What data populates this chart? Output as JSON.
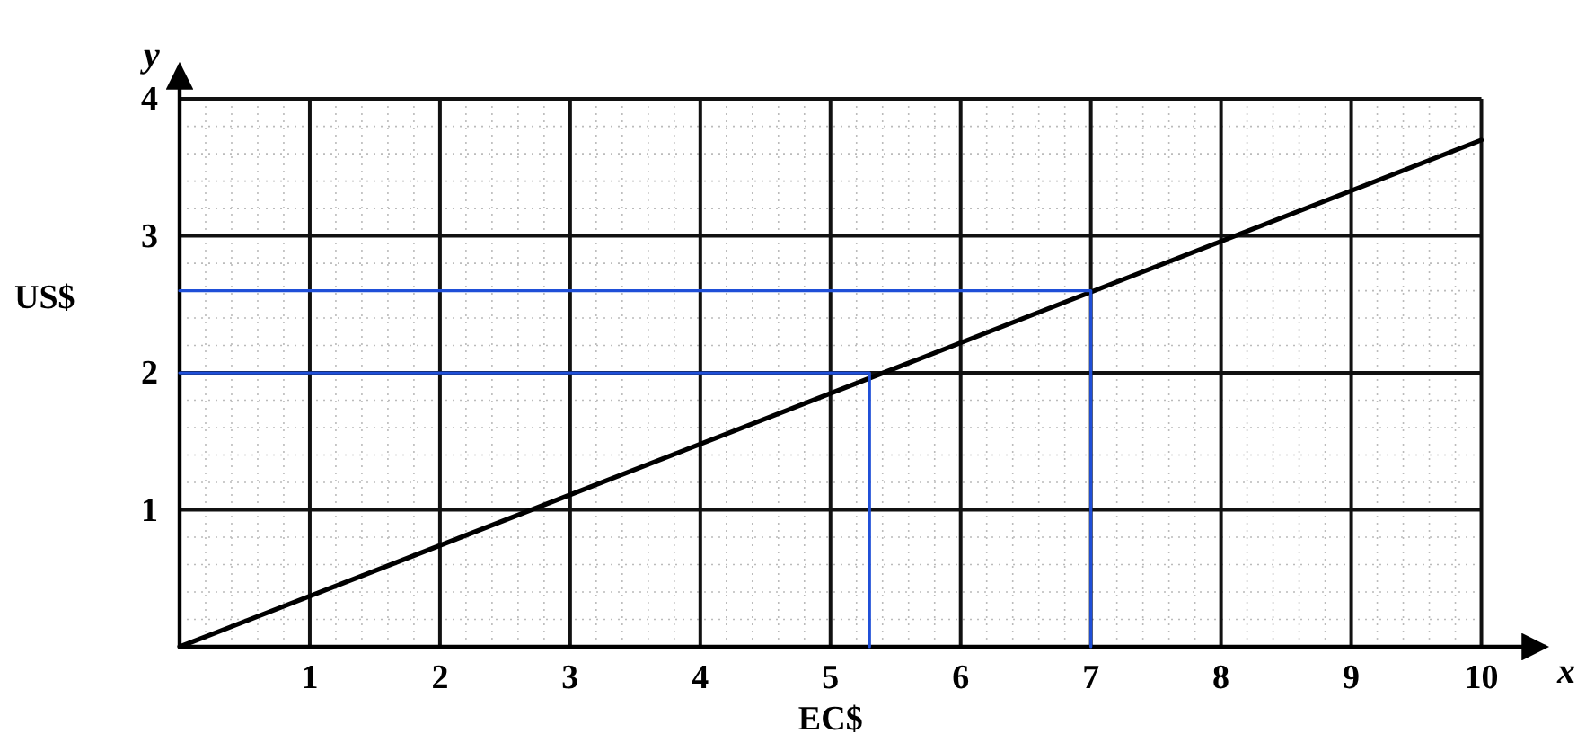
{
  "chart_data": {
    "type": "line",
    "xlabel": "EC$",
    "ylabel": "US$",
    "annotations": [
      "x",
      "y"
    ],
    "xlim": [
      0,
      10.5
    ],
    "ylim": [
      0,
      4.25
    ],
    "xticks": [
      1,
      2,
      3,
      4,
      5,
      6,
      7,
      8,
      9,
      10
    ],
    "yticks": [
      1,
      2,
      3,
      4
    ],
    "grid": true,
    "marker": "none",
    "line_style": "solid",
    "series": [
      {
        "x": [
          0,
          10
        ],
        "values": [
          0,
          3.7
        ],
        "color": "#000000"
      },
      {
        "x": [
          0,
          5.3,
          5.3
        ],
        "values": [
          2,
          2,
          0
        ],
        "color": "#1f4fd8"
      },
      {
        "x": [
          0,
          7,
          7
        ],
        "values": [
          2.6,
          2.6,
          0
        ],
        "color": "#1f4fd8"
      }
    ]
  }
}
